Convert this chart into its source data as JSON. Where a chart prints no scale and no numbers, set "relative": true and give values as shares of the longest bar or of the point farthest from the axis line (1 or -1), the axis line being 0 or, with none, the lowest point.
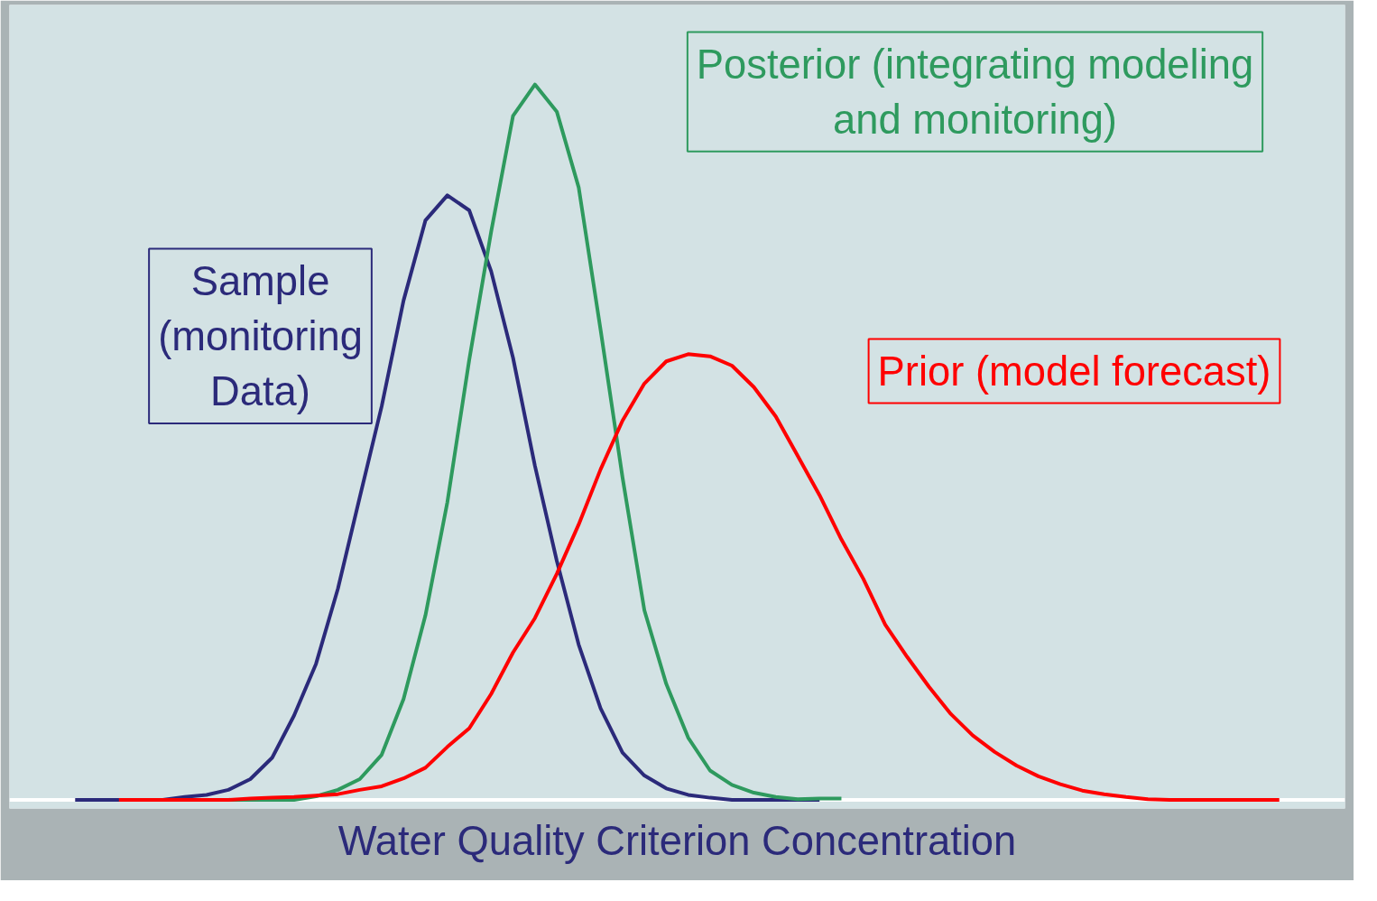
{
  "chart_data": {
    "type": "line",
    "relative": true,
    "xlabel": "Water Quality Criterion Concentration",
    "grid": false,
    "marker": "none",
    "line_style": "solid",
    "categories": [
      null,
      null,
      null,
      null,
      null,
      null,
      null,
      null,
      null,
      null,
      null,
      null,
      null,
      null,
      null,
      null,
      null,
      null,
      null,
      null,
      null,
      null,
      null,
      null,
      null,
      null,
      null,
      null,
      null,
      null,
      null,
      null,
      null,
      null,
      null,
      null,
      null,
      null,
      null,
      null,
      null,
      null,
      null,
      null,
      null,
      null,
      null,
      null,
      null,
      null,
      null,
      null,
      null,
      null,
      null,
      null
    ],
    "series": [
      {
        "name": "Sample (monitoring Data)",
        "color": "#2b2a7a",
        "values": [
          0,
          0,
          0,
          0,
          0,
          0.004,
          0.007,
          0.014,
          0.029,
          0.059,
          0.118,
          0.19,
          0.295,
          0.423,
          0.55,
          0.698,
          0.81,
          0.845,
          0.824,
          0.739,
          0.618,
          0.467,
          0.334,
          0.217,
          0.128,
          0.066,
          0.034,
          0.016,
          0.007,
          0.003,
          0,
          0,
          0,
          0,
          0,
          null,
          null,
          null,
          null,
          null,
          null,
          null,
          null,
          null,
          null,
          null,
          null,
          null,
          null,
          null,
          null,
          null,
          null,
          null,
          null,
          null
        ]
      },
      {
        "name": "Posterior (integrating modeling and monitoring)",
        "color": "#2e9a5e",
        "values": [
          null,
          null,
          null,
          null,
          null,
          null,
          null,
          0,
          0,
          0,
          0,
          0.005,
          0.014,
          0.029,
          0.063,
          0.141,
          0.258,
          0.416,
          0.615,
          0.794,
          0.956,
          1,
          0.962,
          0.856,
          0.657,
          0.451,
          0.265,
          0.162,
          0.087,
          0.041,
          0.021,
          0.01,
          0.004,
          0.001,
          0.002,
          0.002,
          null,
          null,
          null,
          null,
          null,
          null,
          null,
          null,
          null,
          null,
          null,
          null,
          null,
          null,
          null,
          null,
          null,
          null,
          null,
          null
        ]
      },
      {
        "name": "Prior (model forecast)",
        "color": "#ff0000",
        "values": [
          null,
          null,
          0,
          0,
          0,
          0,
          0,
          0,
          0.002,
          0.003,
          0.004,
          0.006,
          0.008,
          0.014,
          0.019,
          0.03,
          0.045,
          0.074,
          0.1,
          0.148,
          0.206,
          0.254,
          0.316,
          0.385,
          0.462,
          0.53,
          0.582,
          0.613,
          0.623,
          0.62,
          0.607,
          0.577,
          0.536,
          0.481,
          0.426,
          0.364,
          0.309,
          0.245,
          0.2,
          0.158,
          0.12,
          0.09,
          0.067,
          0.048,
          0.033,
          0.022,
          0.013,
          0.008,
          0.004,
          0.001,
          0,
          0,
          0,
          0,
          0,
          0
        ]
      }
    ]
  }
}
